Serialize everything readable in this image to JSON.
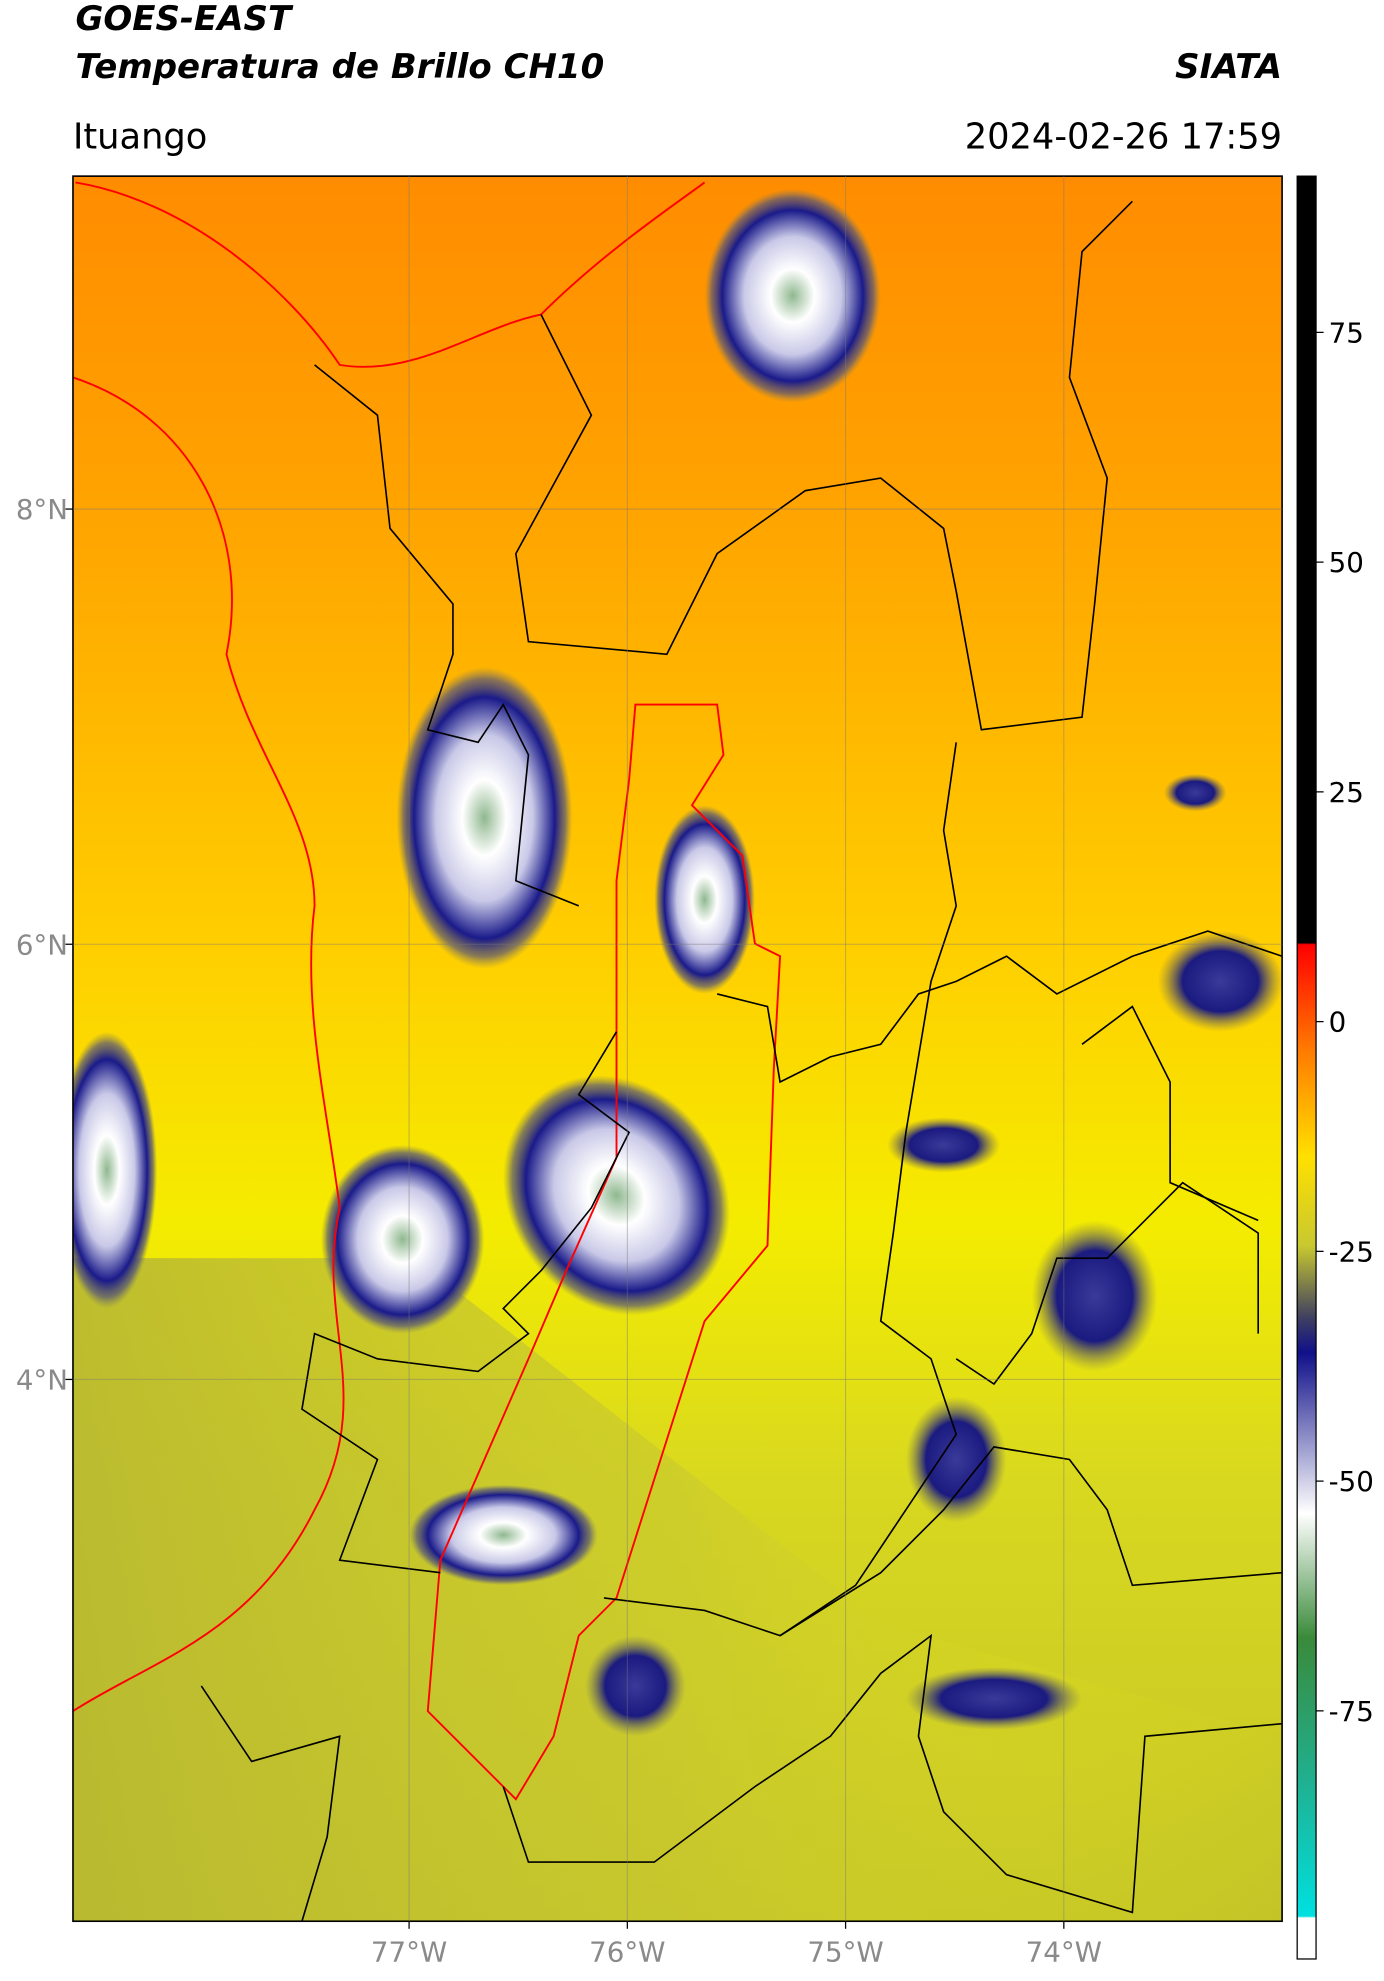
{
  "header": {
    "title": "GOES-EAST",
    "subtitle": "Temperatura de Brillo CH10",
    "source": "SIATA",
    "location": "Ituango",
    "datetime": "2024-02-26 17:59"
  },
  "map": {
    "xlim": [
      -78.54,
      -73.0
    ],
    "ylim": [
      1.51,
      9.53
    ],
    "xticks": [
      {
        "value": -77,
        "label": "77°W"
      },
      {
        "value": -76,
        "label": "76°W"
      },
      {
        "value": -75,
        "label": "75°W"
      },
      {
        "value": -74,
        "label": "74°W"
      }
    ],
    "yticks": [
      {
        "value": 8,
        "label": "8°N"
      },
      {
        "value": 6,
        "label": "6°N"
      },
      {
        "value": 4,
        "label": "4°N"
      }
    ],
    "grid": true
  },
  "colorbar": {
    "clim": [
      -102,
      92
    ],
    "ticks": [
      75,
      50,
      25,
      0,
      -25,
      -50,
      -75
    ]
  }
}
